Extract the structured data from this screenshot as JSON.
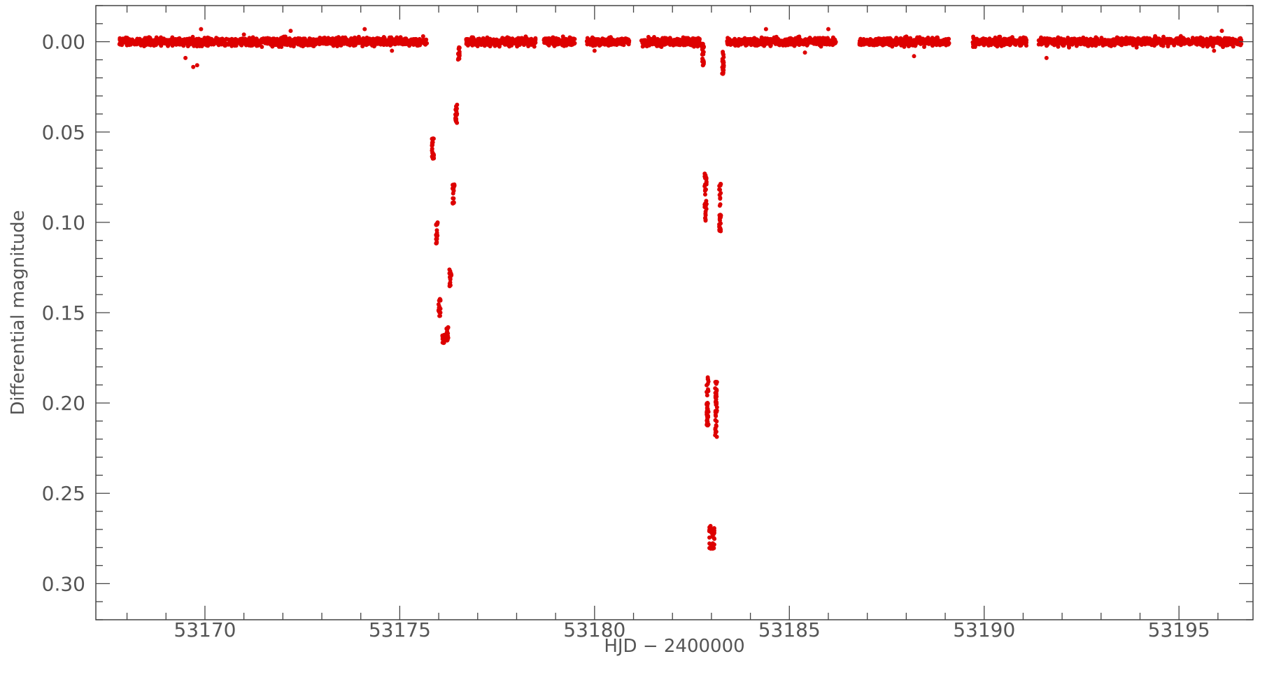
{
  "chart_data": {
    "type": "scatter",
    "title": "",
    "xlabel": "HJD − 2400000",
    "ylabel": "Differential magnitude",
    "xlim": [
      53167.2,
      53196.9
    ],
    "ylim": [
      -0.02,
      0.32
    ],
    "y_inverted": true,
    "grid": false,
    "legend": "none",
    "marker_color": "#dd0000",
    "x_ticks": [
      53170,
      53175,
      53180,
      53185,
      53190,
      53195
    ],
    "x_tick_labels": [
      "53170",
      "53175",
      "53180",
      "53185",
      "53190",
      "53195"
    ],
    "y_ticks": [
      0.0,
      0.05,
      0.1,
      0.15,
      0.2,
      0.25,
      0.3
    ],
    "y_tick_labels": [
      "0.00",
      "0.05",
      "0.10",
      "0.15",
      "0.20",
      "0.25",
      "0.30"
    ],
    "baseline_segments": [
      {
        "x_start": 53167.8,
        "x_end": 53175.7,
        "y": 0.0
      },
      {
        "x_start": 53176.7,
        "x_end": 53178.5,
        "y": 0.0
      },
      {
        "x_start": 53178.7,
        "x_end": 53179.5,
        "y": 0.0
      },
      {
        "x_start": 53179.8,
        "x_end": 53180.9,
        "y": 0.0
      },
      {
        "x_start": 53181.2,
        "x_end": 53182.7,
        "y": 0.0
      },
      {
        "x_start": 53183.4,
        "x_end": 53186.2,
        "y": 0.0
      },
      {
        "x_start": 53186.8,
        "x_end": 53189.1,
        "y": 0.0
      },
      {
        "x_start": 53189.7,
        "x_end": 53191.1,
        "y": 0.0
      },
      {
        "x_start": 53191.4,
        "x_end": 53196.6,
        "y": 0.0
      }
    ],
    "eclipse_clusters": [
      {
        "x": 53175.85,
        "y_min": 0.052,
        "y_max": 0.065
      },
      {
        "x": 53175.95,
        "y_min": 0.1,
        "y_max": 0.112
      },
      {
        "x": 53176.02,
        "y_min": 0.142,
        "y_max": 0.153
      },
      {
        "x": 53176.12,
        "y_min": 0.162,
        "y_max": 0.167
      },
      {
        "x": 53176.22,
        "y_min": 0.158,
        "y_max": 0.166
      },
      {
        "x": 53176.3,
        "y_min": 0.126,
        "y_max": 0.137
      },
      {
        "x": 53176.38,
        "y_min": 0.078,
        "y_max": 0.09
      },
      {
        "x": 53176.45,
        "y_min": 0.034,
        "y_max": 0.045
      },
      {
        "x": 53176.52,
        "y_min": 0.003,
        "y_max": 0.011
      },
      {
        "x": 53182.78,
        "y_min": 0.0,
        "y_max": 0.015
      },
      {
        "x": 53182.85,
        "y_min": 0.072,
        "y_max": 0.1
      },
      {
        "x": 53182.9,
        "y_min": 0.183,
        "y_max": 0.214
      },
      {
        "x": 53182.97,
        "y_min": 0.268,
        "y_max": 0.281
      },
      {
        "x": 53183.05,
        "y_min": 0.269,
        "y_max": 0.281
      },
      {
        "x": 53183.12,
        "y_min": 0.188,
        "y_max": 0.22
      },
      {
        "x": 53183.22,
        "y_min": 0.078,
        "y_max": 0.105
      },
      {
        "x": 53183.3,
        "y_min": 0.005,
        "y_max": 0.018
      }
    ],
    "outliers": [
      {
        "x": 53169.8,
        "y": 0.013
      },
      {
        "x": 53169.7,
        "y": 0.014
      },
      {
        "x": 53169.9,
        "y": -0.007
      },
      {
        "x": 53169.5,
        "y": 0.009
      },
      {
        "x": 53171.0,
        "y": -0.004
      },
      {
        "x": 53172.2,
        "y": -0.006
      },
      {
        "x": 53174.1,
        "y": -0.007
      },
      {
        "x": 53174.8,
        "y": 0.005
      },
      {
        "x": 53175.6,
        "y": -0.003
      },
      {
        "x": 53180.0,
        "y": 0.005
      },
      {
        "x": 53184.4,
        "y": -0.007
      },
      {
        "x": 53185.4,
        "y": 0.006
      },
      {
        "x": 53186.0,
        "y": -0.007
      },
      {
        "x": 53188.2,
        "y": 0.008
      },
      {
        "x": 53191.6,
        "y": 0.009
      },
      {
        "x": 53196.1,
        "y": -0.006
      },
      {
        "x": 53195.9,
        "y": 0.005
      }
    ]
  }
}
